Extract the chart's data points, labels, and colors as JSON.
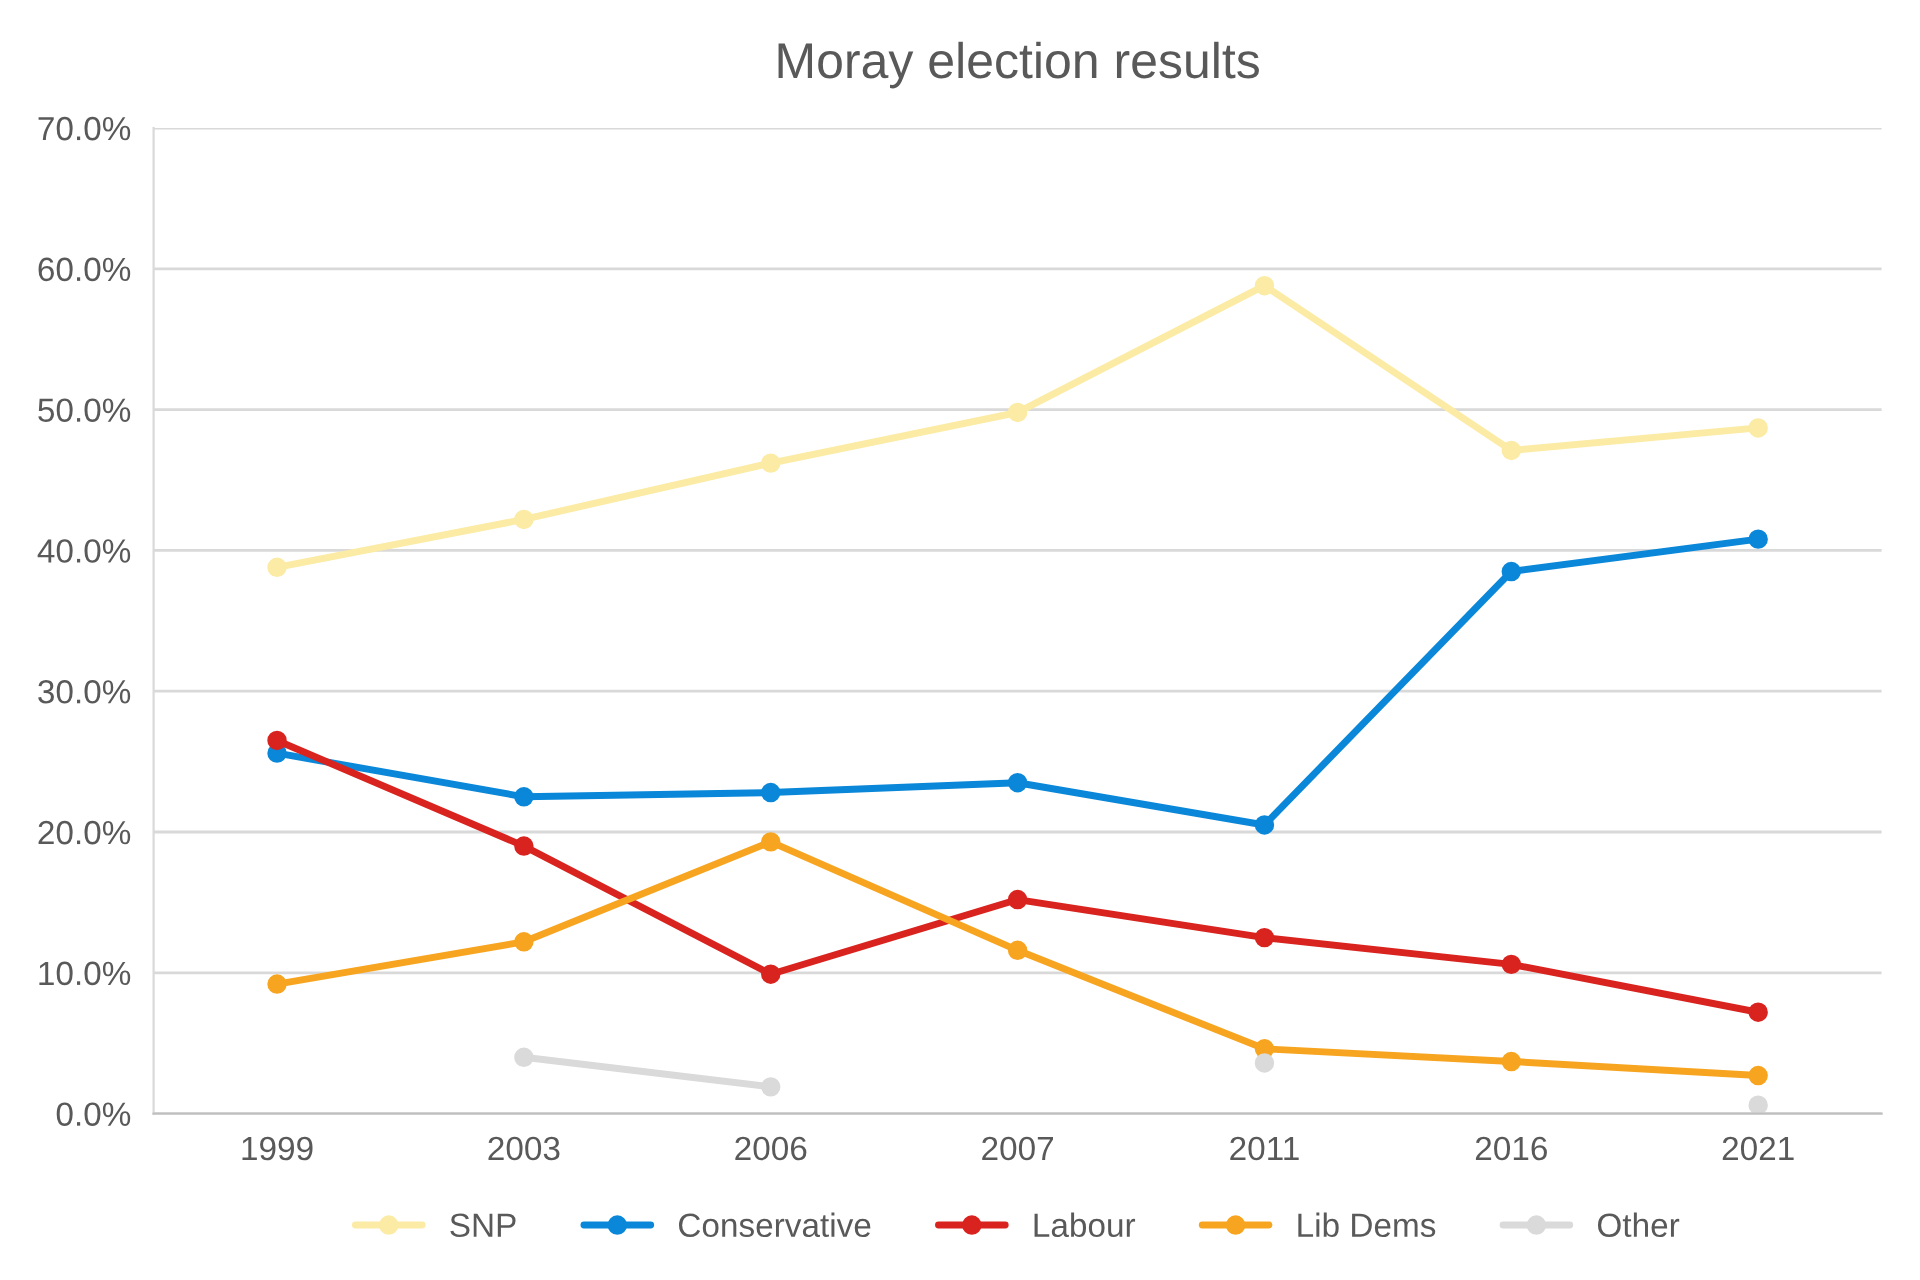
{
  "chart_data": {
    "type": "line",
    "title": "Moray election results",
    "categories": [
      "1999",
      "2003",
      "2006",
      "2007",
      "2011",
      "2016",
      "2021"
    ],
    "series": [
      {
        "name": "SNP",
        "color": "#fbeba4",
        "values": [
          38.8,
          42.2,
          46.2,
          49.8,
          58.8,
          47.1,
          48.7
        ]
      },
      {
        "name": "Conservative",
        "color": "#0a87d8",
        "values": [
          25.6,
          22.5,
          22.8,
          23.5,
          20.5,
          38.5,
          40.8
        ]
      },
      {
        "name": "Labour",
        "color": "#d9231f",
        "values": [
          26.5,
          19.0,
          9.9,
          15.2,
          12.5,
          10.6,
          7.2
        ]
      },
      {
        "name": "Lib Dems",
        "color": "#f7a520",
        "values": [
          9.2,
          12.2,
          19.3,
          11.6,
          4.6,
          3.7,
          2.7
        ]
      },
      {
        "name": "Other",
        "color": "#dadada",
        "values": [
          null,
          4.0,
          1.9,
          null,
          3.6,
          null,
          0.6
        ]
      }
    ],
    "ylim": [
      0,
      70
    ],
    "yticks": [
      {
        "value": 0,
        "label": "0.0%"
      },
      {
        "value": 10,
        "label": "10.0%"
      },
      {
        "value": 20,
        "label": "20.0%"
      },
      {
        "value": 30,
        "label": "30.0%"
      },
      {
        "value": 40,
        "label": "40.0%"
      },
      {
        "value": 50,
        "label": "50.0%"
      },
      {
        "value": 60,
        "label": "60.0%"
      },
      {
        "value": 70,
        "label": "70.0%"
      }
    ],
    "grid": "y",
    "legend": "bottom",
    "marker": "circle",
    "line_style": "solid"
  }
}
